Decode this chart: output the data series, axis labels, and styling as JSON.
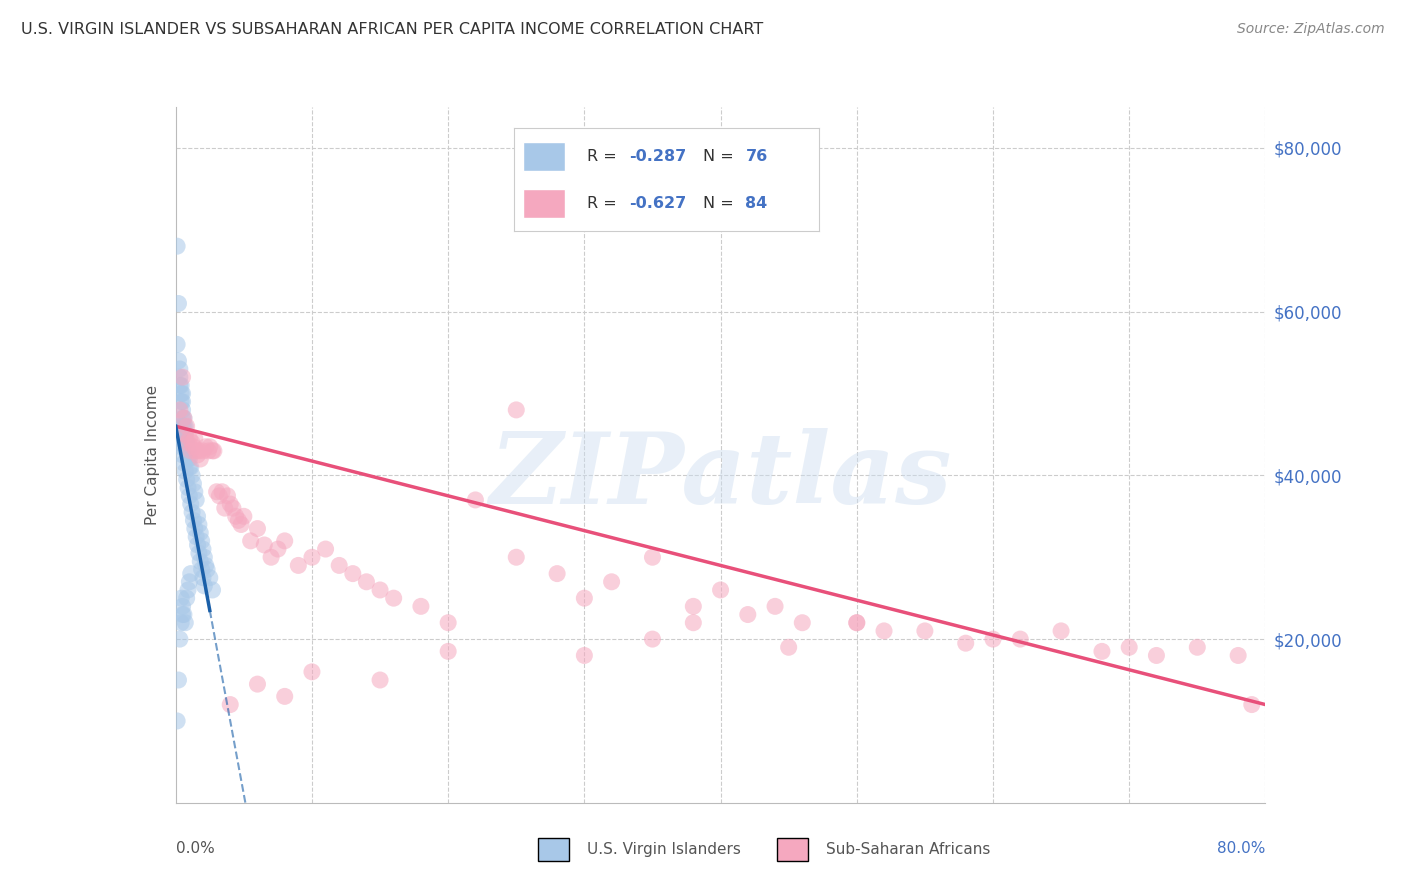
{
  "title": "U.S. VIRGIN ISLANDER VS SUBSAHARAN AFRICAN PER CAPITA INCOME CORRELATION CHART",
  "source": "Source: ZipAtlas.com",
  "ylabel": "Per Capita Income",
  "yticks": [
    0,
    20000,
    40000,
    60000,
    80000
  ],
  "ytick_labels": [
    "",
    "$20,000",
    "$40,000",
    "$60,000",
    "$80,000"
  ],
  "xlim": [
    0.0,
    0.8
  ],
  "ylim": [
    0,
    85000
  ],
  "legend1_label": "U.S. Virgin Islanders",
  "legend2_label": "Sub-Saharan Africans",
  "R1": "-0.287",
  "N1": "76",
  "R2": "-0.627",
  "N2": "84",
  "blue_color": "#a8c8e8",
  "blue_line_color": "#1a5fa8",
  "pink_color": "#f5a8bf",
  "pink_line_color": "#e8507a",
  "watermark_text": "ZIPatlas",
  "blue_trend_x0": 0.0,
  "blue_trend_y0": 46000,
  "blue_trend_slope": -900000,
  "pink_trend_x0": 0.0,
  "pink_trend_y0": 46000,
  "pink_trend_x1": 0.8,
  "pink_trend_y1": 12000,
  "blue_scatter_x": [
    0.001,
    0.001,
    0.001,
    0.002,
    0.002,
    0.002,
    0.002,
    0.003,
    0.003,
    0.003,
    0.003,
    0.003,
    0.004,
    0.004,
    0.004,
    0.004,
    0.005,
    0.005,
    0.005,
    0.005,
    0.005,
    0.005,
    0.006,
    0.006,
    0.006,
    0.006,
    0.007,
    0.007,
    0.007,
    0.007,
    0.008,
    0.008,
    0.008,
    0.009,
    0.009,
    0.009,
    0.01,
    0.01,
    0.01,
    0.011,
    0.011,
    0.012,
    0.013,
    0.014,
    0.015,
    0.016,
    0.017,
    0.018,
    0.019,
    0.02,
    0.021,
    0.022,
    0.023,
    0.025,
    0.027,
    0.003,
    0.004,
    0.005,
    0.006,
    0.007,
    0.008,
    0.009,
    0.01,
    0.011,
    0.012,
    0.013,
    0.014,
    0.015,
    0.016,
    0.017,
    0.018,
    0.019,
    0.02,
    0.021,
    0.004,
    0.005
  ],
  "blue_scatter_y": [
    68000,
    56000,
    10000,
    61000,
    54000,
    46000,
    15000,
    53000,
    52000,
    51000,
    44000,
    20000,
    51000,
    50000,
    49000,
    22000,
    50000,
    49000,
    48000,
    47000,
    46000,
    24000,
    47000,
    46000,
    45000,
    23000,
    46000,
    45000,
    44000,
    22000,
    44000,
    43000,
    25000,
    43000,
    42000,
    26000,
    42000,
    41000,
    27000,
    41000,
    28000,
    40000,
    39000,
    38000,
    37000,
    35000,
    34000,
    33000,
    32000,
    31000,
    30000,
    29000,
    28500,
    27500,
    26000,
    44500,
    43500,
    42500,
    41500,
    40500,
    39500,
    38500,
    37500,
    36500,
    35500,
    34500,
    33500,
    32500,
    31500,
    30500,
    29500,
    28500,
    27500,
    26500,
    25000,
    23000
  ],
  "pink_scatter_x": [
    0.003,
    0.005,
    0.006,
    0.007,
    0.008,
    0.009,
    0.01,
    0.011,
    0.012,
    0.013,
    0.014,
    0.015,
    0.016,
    0.017,
    0.018,
    0.02,
    0.022,
    0.024,
    0.025,
    0.027,
    0.028,
    0.03,
    0.032,
    0.034,
    0.036,
    0.038,
    0.04,
    0.042,
    0.044,
    0.046,
    0.048,
    0.05,
    0.055,
    0.06,
    0.065,
    0.07,
    0.075,
    0.08,
    0.09,
    0.1,
    0.11,
    0.12,
    0.13,
    0.14,
    0.15,
    0.16,
    0.18,
    0.2,
    0.22,
    0.25,
    0.28,
    0.3,
    0.32,
    0.35,
    0.38,
    0.4,
    0.42,
    0.44,
    0.46,
    0.5,
    0.52,
    0.55,
    0.58,
    0.6,
    0.62,
    0.65,
    0.68,
    0.7,
    0.72,
    0.75,
    0.78,
    0.79,
    0.38,
    0.25,
    0.5,
    0.35,
    0.45,
    0.3,
    0.2,
    0.15,
    0.1,
    0.08,
    0.06,
    0.04
  ],
  "pink_scatter_y": [
    48000,
    52000,
    47000,
    45000,
    46000,
    44000,
    44500,
    43000,
    44000,
    43500,
    44500,
    43000,
    42500,
    43000,
    42000,
    43000,
    43500,
    43000,
    43500,
    43000,
    43000,
    38000,
    37500,
    38000,
    36000,
    37500,
    36500,
    36000,
    35000,
    34500,
    34000,
    35000,
    32000,
    33500,
    31500,
    30000,
    31000,
    32000,
    29000,
    30000,
    31000,
    29000,
    28000,
    27000,
    26000,
    25000,
    24000,
    22000,
    37000,
    30000,
    28000,
    25000,
    27000,
    30000,
    24000,
    26000,
    23000,
    24000,
    22000,
    22000,
    21000,
    21000,
    19500,
    20000,
    20000,
    21000,
    18500,
    19000,
    18000,
    19000,
    18000,
    12000,
    22000,
    48000,
    22000,
    20000,
    19000,
    18000,
    18500,
    15000,
    16000,
    13000,
    14500,
    12000
  ]
}
